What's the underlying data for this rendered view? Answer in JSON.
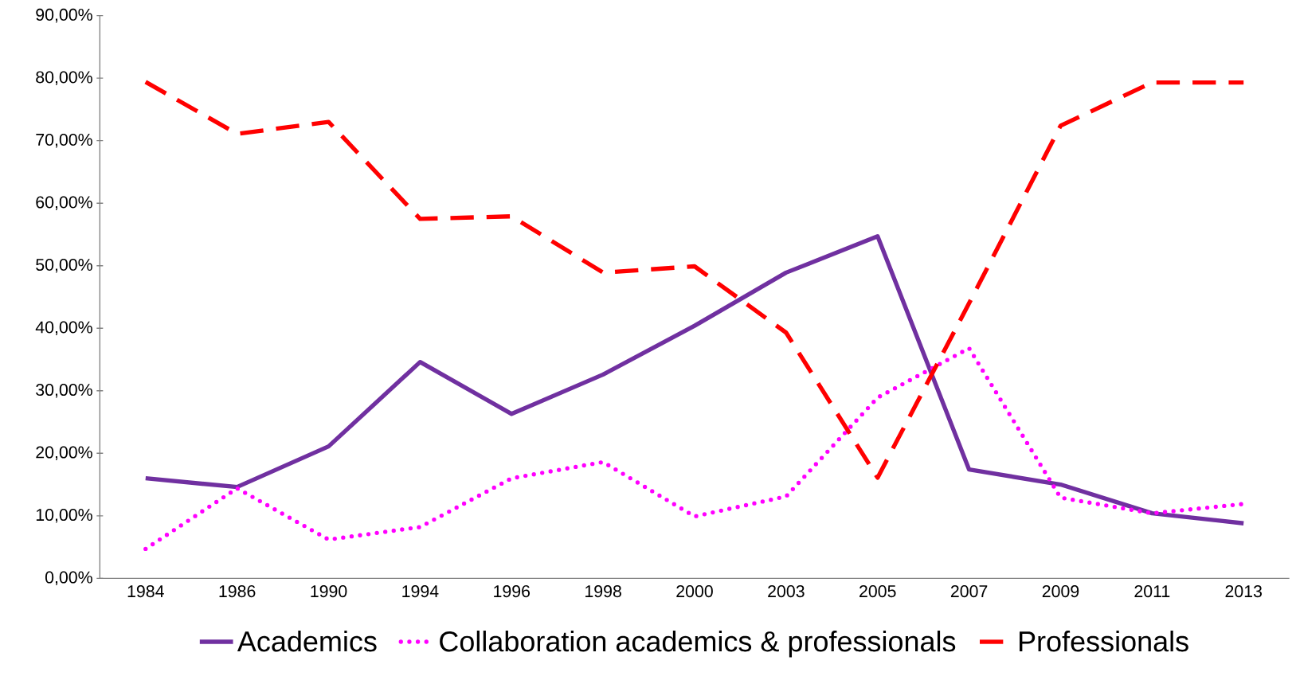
{
  "chart_data": {
    "type": "line",
    "categories": [
      "1984",
      "1986",
      "1990",
      "1994",
      "1996",
      "1998",
      "2000",
      "2003",
      "2005",
      "2007",
      "2009",
      "2011",
      "2013"
    ],
    "series": [
      {
        "name": "Academics",
        "color": "#7030a0",
        "line_style": "solid",
        "values": [
          16.0,
          14.6,
          21.1,
          34.6,
          26.3,
          32.6,
          40.4,
          48.9,
          54.7,
          17.4,
          15.0,
          10.4,
          8.8
        ]
      },
      {
        "name": "Collaboration academics & professionals",
        "color": "#ff00ff",
        "line_style": "dotted",
        "values": [
          4.7,
          14.4,
          6.2,
          8.2,
          16.0,
          18.6,
          9.9,
          13.1,
          28.9,
          36.8,
          12.9,
          10.4,
          11.9
        ]
      },
      {
        "name": "Professionals",
        "color": "#ff0000",
        "line_style": "dashed",
        "values": [
          79.4,
          71.1,
          73.0,
          57.5,
          57.9,
          48.9,
          49.9,
          39.3,
          16.1,
          44.0,
          72.4,
          79.3,
          79.3
        ]
      }
    ],
    "ylim": [
      0,
      90
    ],
    "yticks": [
      {
        "value": 0,
        "label": "0,00%"
      },
      {
        "value": 10,
        "label": "10,00%"
      },
      {
        "value": 20,
        "label": "20,00%"
      },
      {
        "value": 30,
        "label": "30,00%"
      },
      {
        "value": 40,
        "label": "40,00%"
      },
      {
        "value": 50,
        "label": "50,00%"
      },
      {
        "value": 60,
        "label": "60,00%"
      },
      {
        "value": 70,
        "label": "70,00%"
      },
      {
        "value": 80,
        "label": "80,00%"
      },
      {
        "value": 90,
        "label": "90,00%"
      }
    ],
    "grid": false,
    "legend": "bottom",
    "marker": "none"
  }
}
